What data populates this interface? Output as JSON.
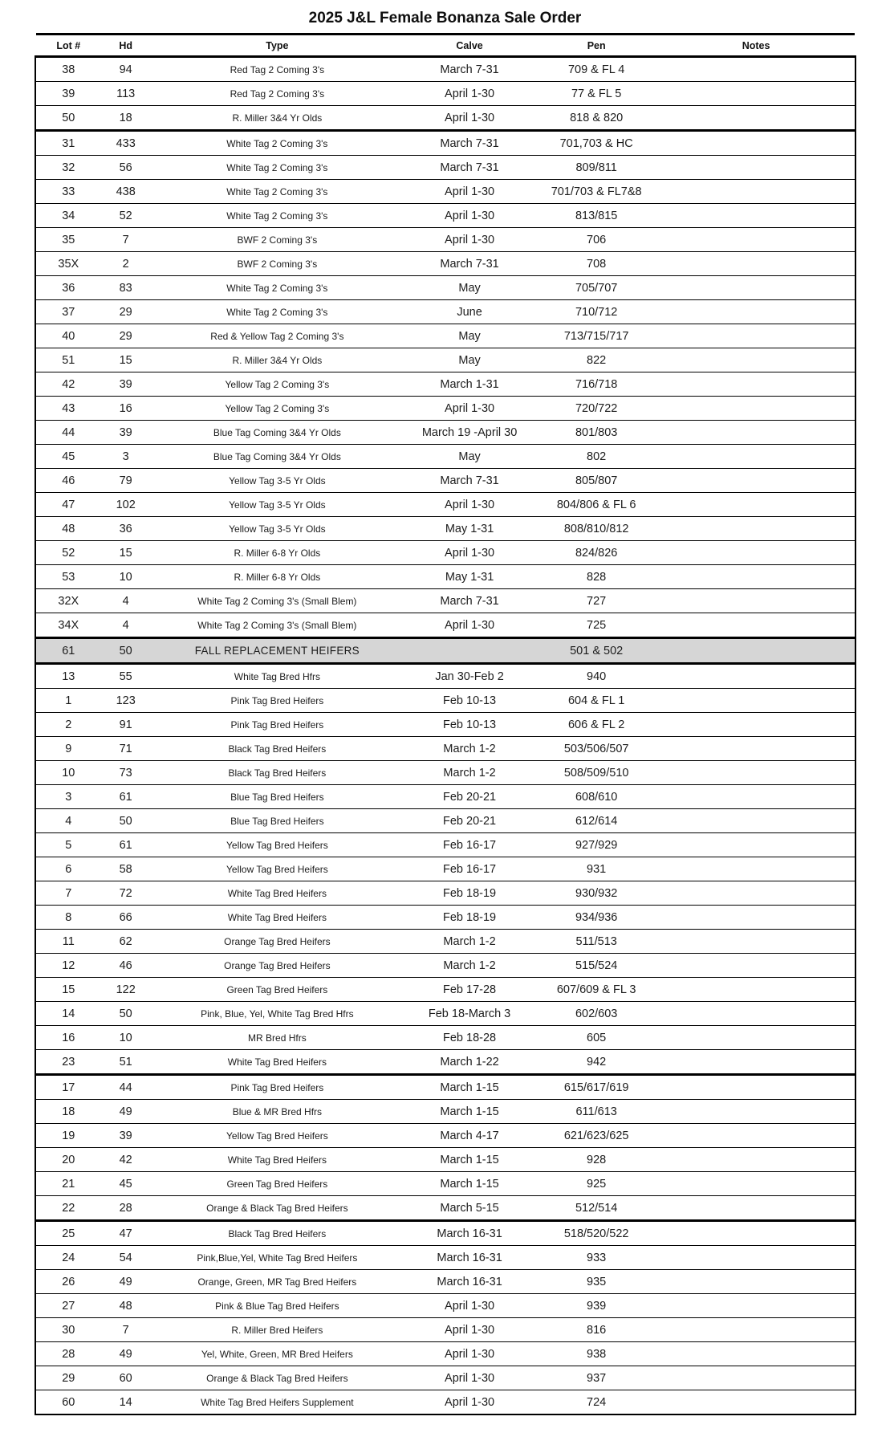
{
  "title": "2025 J&L Female Bonanza Sale Order",
  "colors": {
    "border": "#000000",
    "text": "#1a1a1a",
    "row_highlight_bg": "#d6d6d6"
  },
  "table": {
    "columns": [
      "Lot #",
      "Hd",
      "Type",
      "Calve",
      "Pen",
      "Notes"
    ],
    "rows": [
      {
        "lot": "38",
        "hd": "94",
        "type": "Red Tag 2 Coming 3's",
        "calve": "March 7-31",
        "pen": "709 & FL 4",
        "notes": ""
      },
      {
        "lot": "39",
        "hd": "113",
        "type": "Red Tag 2 Coming 3's",
        "calve": "April 1-30",
        "pen": "77 & FL 5",
        "notes": ""
      },
      {
        "lot": "50",
        "hd": "18",
        "type": "R. Miller 3&4 Yr Olds",
        "calve": "April 1-30",
        "pen": "818 & 820",
        "notes": ""
      },
      {
        "lot": "31",
        "hd": "433",
        "type": "White Tag 2 Coming 3's",
        "calve": "March 7-31",
        "pen": "701,703 & HC",
        "notes": "",
        "section_break": true
      },
      {
        "lot": "32",
        "hd": "56",
        "type": "White Tag 2 Coming 3's",
        "calve": "March 7-31",
        "pen": "809/811",
        "notes": ""
      },
      {
        "lot": "33",
        "hd": "438",
        "type": "White Tag 2 Coming 3's",
        "calve": "April 1-30",
        "pen": "701/703 & FL7&8",
        "notes": ""
      },
      {
        "lot": "34",
        "hd": "52",
        "type": "White Tag 2 Coming 3's",
        "calve": "April 1-30",
        "pen": "813/815",
        "notes": ""
      },
      {
        "lot": "35",
        "hd": "7",
        "type": "BWF 2 Coming 3's",
        "calve": "April 1-30",
        "pen": "706",
        "notes": ""
      },
      {
        "lot": "35X",
        "hd": "2",
        "type": "BWF 2 Coming 3's",
        "calve": "March 7-31",
        "pen": "708",
        "notes": ""
      },
      {
        "lot": "36",
        "hd": "83",
        "type": "White Tag 2 Coming 3's",
        "calve": "May",
        "pen": "705/707",
        "notes": ""
      },
      {
        "lot": "37",
        "hd": "29",
        "type": "White Tag 2 Coming 3's",
        "calve": "June",
        "pen": "710/712",
        "notes": ""
      },
      {
        "lot": "40",
        "hd": "29",
        "type": "Red & Yellow Tag 2 Coming 3's",
        "calve": "May",
        "pen": "713/715/717",
        "notes": ""
      },
      {
        "lot": "51",
        "hd": "15",
        "type": "R. Miller 3&4 Yr Olds",
        "calve": "May",
        "pen": "822",
        "notes": ""
      },
      {
        "lot": "42",
        "hd": "39",
        "type": "Yellow Tag 2 Coming 3's",
        "calve": "March 1-31",
        "pen": "716/718",
        "notes": ""
      },
      {
        "lot": "43",
        "hd": "16",
        "type": "Yellow Tag 2 Coming 3's",
        "calve": "April 1-30",
        "pen": "720/722",
        "notes": ""
      },
      {
        "lot": "44",
        "hd": "39",
        "type": "Blue Tag Coming 3&4 Yr Olds",
        "calve": "March 19 -April 30",
        "pen": "801/803",
        "notes": ""
      },
      {
        "lot": "45",
        "hd": "3",
        "type": "Blue Tag Coming 3&4 Yr Olds",
        "calve": "May",
        "pen": "802",
        "notes": ""
      },
      {
        "lot": "46",
        "hd": "79",
        "type": "Yellow Tag 3-5 Yr Olds",
        "calve": "March 7-31",
        "pen": "805/807",
        "notes": ""
      },
      {
        "lot": "47",
        "hd": "102",
        "type": "Yellow Tag 3-5 Yr Olds",
        "calve": "April 1-30",
        "pen": "804/806 & FL 6",
        "notes": ""
      },
      {
        "lot": "48",
        "hd": "36",
        "type": "Yellow Tag 3-5 Yr Olds",
        "calve": "May 1-31",
        "pen": "808/810/812",
        "notes": ""
      },
      {
        "lot": "52",
        "hd": "15",
        "type": "R. Miller 6-8 Yr Olds",
        "calve": "April 1-30",
        "pen": "824/826",
        "notes": ""
      },
      {
        "lot": "53",
        "hd": "10",
        "type": "R. Miller 6-8 Yr Olds",
        "calve": "May 1-31",
        "pen": "828",
        "notes": ""
      },
      {
        "lot": "32X",
        "hd": "4",
        "type": "White Tag 2 Coming 3's (Small Blem)",
        "calve": "March 7-31",
        "pen": "727",
        "notes": ""
      },
      {
        "lot": "34X",
        "hd": "4",
        "type": "White Tag 2 Coming 3's (Small Blem)",
        "calve": "April 1-30",
        "pen": "725",
        "notes": ""
      },
      {
        "lot": "61",
        "hd": "50",
        "type": "FALL REPLACEMENT HEIFERS",
        "calve": "",
        "pen": "501 & 502",
        "notes": "",
        "highlight": true,
        "section_break": true
      },
      {
        "lot": "13",
        "hd": "55",
        "type": "White Tag Bred Hfrs",
        "calve": "Jan 30-Feb 2",
        "pen": "940",
        "notes": "",
        "section_break": true
      },
      {
        "lot": "1",
        "hd": "123",
        "type": "Pink Tag Bred Heifers",
        "calve": "Feb 10-13",
        "pen": "604 & FL 1",
        "notes": ""
      },
      {
        "lot": "2",
        "hd": "91",
        "type": "Pink Tag Bred Heifers",
        "calve": "Feb 10-13",
        "pen": "606 & FL 2",
        "notes": ""
      },
      {
        "lot": "9",
        "hd": "71",
        "type": "Black Tag Bred Heifers",
        "calve": "March 1-2",
        "pen": "503/506/507",
        "notes": ""
      },
      {
        "lot": "10",
        "hd": "73",
        "type": "Black Tag Bred Heifers",
        "calve": "March 1-2",
        "pen": "508/509/510",
        "notes": ""
      },
      {
        "lot": "3",
        "hd": "61",
        "type": "Blue Tag Bred Heifers",
        "calve": "Feb 20-21",
        "pen": "608/610",
        "notes": ""
      },
      {
        "lot": "4",
        "hd": "50",
        "type": "Blue Tag Bred Heifers",
        "calve": "Feb 20-21",
        "pen": "612/614",
        "notes": ""
      },
      {
        "lot": "5",
        "hd": "61",
        "type": "Yellow Tag Bred Heifers",
        "calve": "Feb 16-17",
        "pen": "927/929",
        "notes": ""
      },
      {
        "lot": "6",
        "hd": "58",
        "type": "Yellow Tag Bred Heifers",
        "calve": "Feb 16-17",
        "pen": "931",
        "notes": ""
      },
      {
        "lot": "7",
        "hd": "72",
        "type": "White Tag Bred Heifers",
        "calve": "Feb 18-19",
        "pen": "930/932",
        "notes": ""
      },
      {
        "lot": "8",
        "hd": "66",
        "type": "White Tag Bred Heifers",
        "calve": "Feb 18-19",
        "pen": "934/936",
        "notes": ""
      },
      {
        "lot": "11",
        "hd": "62",
        "type": "Orange Tag Bred Heifers",
        "calve": "March 1-2",
        "pen": "511/513",
        "notes": ""
      },
      {
        "lot": "12",
        "hd": "46",
        "type": "Orange Tag Bred Heifers",
        "calve": "March 1-2",
        "pen": "515/524",
        "notes": ""
      },
      {
        "lot": "15",
        "hd": "122",
        "type": "Green Tag Bred Heifers",
        "calve": "Feb 17-28",
        "pen": "607/609 & FL 3",
        "notes": ""
      },
      {
        "lot": "14",
        "hd": "50",
        "type": "Pink, Blue, Yel, White Tag Bred Hfrs",
        "calve": "Feb 18-March 3",
        "pen": "602/603",
        "notes": ""
      },
      {
        "lot": "16",
        "hd": "10",
        "type": "MR Bred Hfrs",
        "calve": "Feb 18-28",
        "pen": "605",
        "notes": ""
      },
      {
        "lot": "23",
        "hd": "51",
        "type": "White Tag Bred Heifers",
        "calve": "March 1-22",
        "pen": "942",
        "notes": ""
      },
      {
        "lot": "17",
        "hd": "44",
        "type": "Pink Tag Bred Heifers",
        "calve": "March 1-15",
        "pen": "615/617/619",
        "notes": "",
        "section_break": true
      },
      {
        "lot": "18",
        "hd": "49",
        "type": "Blue & MR Bred Hfrs",
        "calve": "March 1-15",
        "pen": "611/613",
        "notes": ""
      },
      {
        "lot": "19",
        "hd": "39",
        "type": "Yellow Tag Bred Heifers",
        "calve": "March 4-17",
        "pen": "621/623/625",
        "notes": ""
      },
      {
        "lot": "20",
        "hd": "42",
        "type": "White Tag Bred Heifers",
        "calve": "March 1-15",
        "pen": "928",
        "notes": ""
      },
      {
        "lot": "21",
        "hd": "45",
        "type": "Green Tag Bred Heifers",
        "calve": "March 1-15",
        "pen": "925",
        "notes": ""
      },
      {
        "lot": "22",
        "hd": "28",
        "type": "Orange & Black Tag Bred Heifers",
        "calve": "March 5-15",
        "pen": "512/514",
        "notes": ""
      },
      {
        "lot": "25",
        "hd": "47",
        "type": "Black Tag Bred Heifers",
        "calve": "March 16-31",
        "pen": "518/520/522",
        "notes": "",
        "section_break": true
      },
      {
        "lot": "24",
        "hd": "54",
        "type": "Pink,Blue,Yel, White Tag Bred Heifers",
        "calve": "March 16-31",
        "pen": "933",
        "notes": ""
      },
      {
        "lot": "26",
        "hd": "49",
        "type": "Orange, Green, MR Tag Bred Heifers",
        "calve": "March 16-31",
        "pen": "935",
        "notes": ""
      },
      {
        "lot": "27",
        "hd": "48",
        "type": "Pink & Blue Tag Bred Heifers",
        "calve": "April 1-30",
        "pen": "939",
        "notes": ""
      },
      {
        "lot": "30",
        "hd": "7",
        "type": "R. Miller Bred Heifers",
        "calve": "April 1-30",
        "pen": "816",
        "notes": ""
      },
      {
        "lot": "28",
        "hd": "49",
        "type": "Yel, White, Green, MR Bred Heifers",
        "calve": "April 1-30",
        "pen": "938",
        "notes": ""
      },
      {
        "lot": "29",
        "hd": "60",
        "type": "Orange & Black Tag Bred Heifers",
        "calve": "April 1-30",
        "pen": "937",
        "notes": ""
      },
      {
        "lot": "60",
        "hd": "14",
        "type": "White Tag Bred Heifers Supplement",
        "calve": "April 1-30",
        "pen": "724",
        "notes": ""
      }
    ]
  }
}
